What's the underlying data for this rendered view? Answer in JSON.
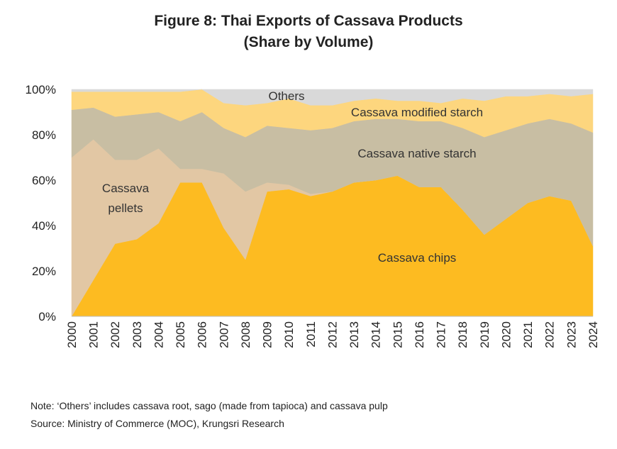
{
  "chart_data": {
    "type": "area",
    "stacked": true,
    "percent": true,
    "title": "Figure 8: Thai Exports of Cassava Products",
    "subtitle": "(Share by Volume)",
    "x": [
      "2000",
      "2001",
      "2002",
      "2003",
      "2004",
      "2005",
      "2006",
      "2007",
      "2008",
      "2009",
      "2010",
      "2011",
      "2012",
      "2013",
      "2014",
      "2015",
      "2016",
      "2017",
      "2018",
      "2019",
      "2020",
      "2021",
      "2022",
      "2023",
      "2024"
    ],
    "ylim": [
      0,
      100
    ],
    "yticks": [
      "0%",
      "20%",
      "40%",
      "60%",
      "80%",
      "100%"
    ],
    "grid": false,
    "series": [
      {
        "name": "Cassava  chips",
        "color": "#FDBB21",
        "values": [
          0,
          16,
          32,
          34,
          41,
          59,
          59,
          39,
          25,
          55,
          56,
          53,
          55,
          59,
          60,
          62,
          57,
          57,
          47,
          36,
          43,
          50,
          53,
          51,
          31
        ]
      },
      {
        "name": "Cassava\npellets",
        "color": "#E2C7A4",
        "values": [
          70,
          62,
          37,
          35,
          33,
          6,
          6,
          24,
          30,
          4,
          2,
          1,
          0,
          0,
          0,
          0,
          0,
          0,
          0,
          0,
          0,
          0,
          0,
          0,
          0
        ]
      },
      {
        "name": "Cassava native starch",
        "color": "#C8BEA3",
        "values": [
          21,
          14,
          19,
          20,
          16,
          21,
          25,
          20,
          24,
          25,
          25,
          28,
          28,
          27,
          27,
          25,
          29,
          29,
          36,
          43,
          39,
          35,
          34,
          34,
          50
        ]
      },
      {
        "name": "Cassava modified starch",
        "color": "#FDD67E",
        "values": [
          8,
          7,
          11,
          10,
          9,
          13,
          10,
          11,
          14,
          10,
          13,
          11,
          10,
          9,
          9,
          8,
          9,
          8,
          13,
          16,
          15,
          12,
          11,
          12,
          17
        ]
      },
      {
        "name": "Others",
        "color": "#D9D9D9",
        "values": [
          1,
          1,
          1,
          1,
          1,
          1,
          0,
          6,
          7,
          6,
          4,
          7,
          7,
          5,
          4,
          5,
          5,
          6,
          4,
          5,
          3,
          3,
          2,
          3,
          2
        ]
      }
    ]
  },
  "text": {
    "title": "Figure 8: Thai Exports of Cassava Products",
    "subtitle": "(Share by Volume)",
    "note": "Note: ‘Others’ includes cassava root, sago (made from tapioca) and cassava pulp",
    "source": "Source: Ministry of Commerce (MOC), Krungsri Research"
  }
}
